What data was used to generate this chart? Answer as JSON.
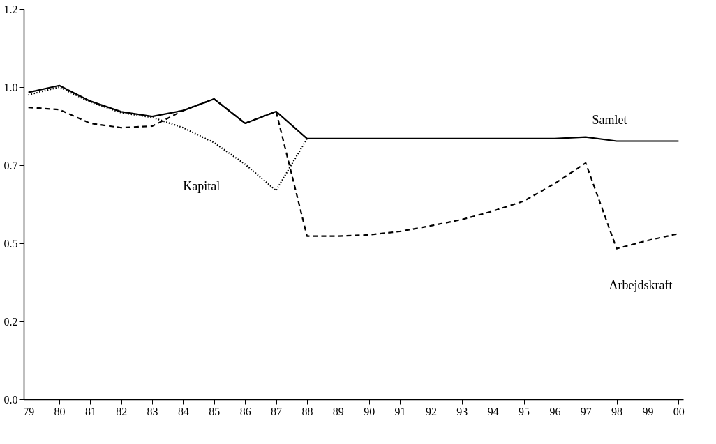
{
  "chart_data": {
    "type": "line",
    "categories": [
      "79",
      "80",
      "81",
      "82",
      "83",
      "84",
      "85",
      "86",
      "87",
      "88",
      "89",
      "90",
      "91",
      "92",
      "93",
      "94",
      "95",
      "96",
      "97",
      "98",
      "99",
      "00"
    ],
    "ylim": [
      0,
      1.25
    ],
    "yticks": [
      {
        "value": 0,
        "label": "0.0"
      },
      {
        "value": 0.25,
        "label": "0.2"
      },
      {
        "value": 0.5,
        "label": "0.5"
      },
      {
        "value": 0.75,
        "label": "0.7"
      },
      {
        "value": 1.0,
        "label": "1.0"
      },
      {
        "value": 1.25,
        "label": "1.2"
      }
    ],
    "grid": false,
    "legend": false,
    "marker": "none",
    "series": [
      {
        "name": "Samlet",
        "color": "#000000",
        "line_style": "solid",
        "values": [
          0.983,
          1.005,
          0.955,
          0.921,
          0.906,
          0.925,
          0.962,
          0.884,
          0.922,
          0.835,
          0.835,
          0.835,
          0.835,
          0.835,
          0.835,
          0.835,
          0.835,
          0.835,
          0.84,
          0.827,
          0.827,
          0.827
        ]
      },
      {
        "name": "Kapital",
        "color": "#000000",
        "line_style": "dotted",
        "values": [
          0.975,
          1.0,
          0.952,
          0.918,
          0.903,
          0.87,
          0.822,
          0.753,
          0.669,
          0.835,
          null,
          null,
          null,
          null,
          null,
          null,
          null,
          null,
          null,
          null,
          null,
          null
        ]
      },
      {
        "name": "Arbejdskraft",
        "color": "#000000",
        "line_style": "dashed",
        "values": [
          0.935,
          0.928,
          0.884,
          0.87,
          0.875,
          0.925,
          0.962,
          0.884,
          0.922,
          0.523,
          0.523,
          0.527,
          0.538,
          0.556,
          0.576,
          0.603,
          0.635,
          0.691,
          0.757,
          0.483,
          0.509,
          0.531
        ]
      }
    ]
  }
}
